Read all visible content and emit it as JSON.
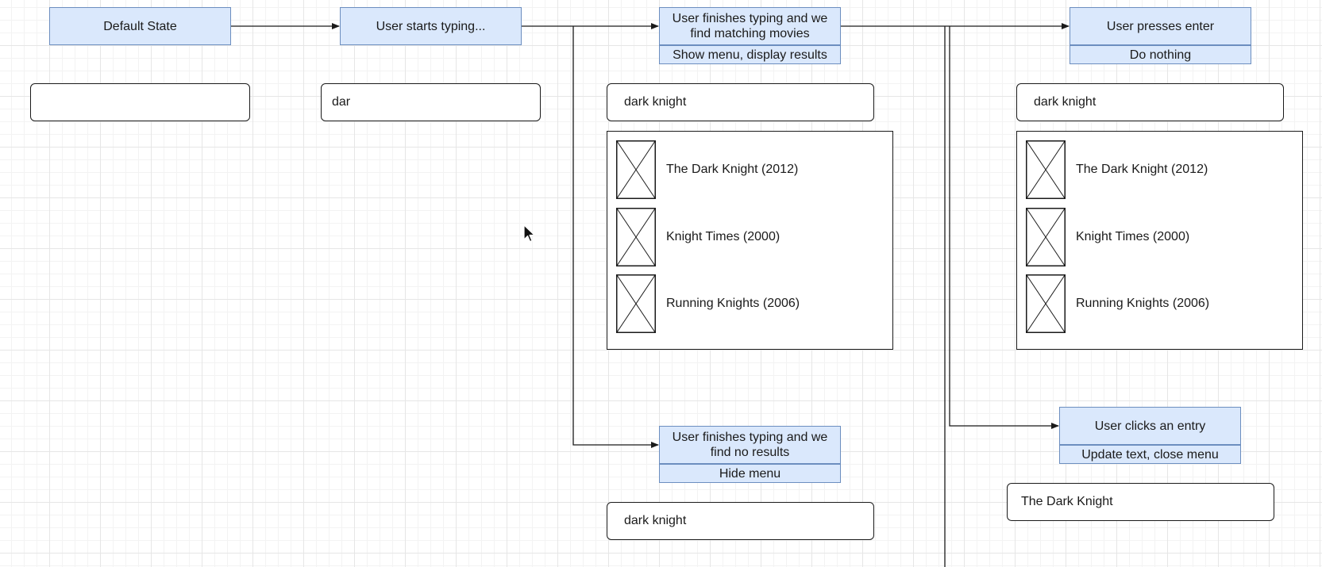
{
  "states": {
    "default": {
      "label": "Default State"
    },
    "typing": {
      "label": "User starts typing..."
    },
    "matches": {
      "label": "User finishes typing and we find matching movies",
      "action": "Show menu, display results"
    },
    "no_results": {
      "label": "User finishes typing and we find no results",
      "action": "Hide menu"
    },
    "enter": {
      "label": "User presses enter",
      "action": "Do nothing"
    },
    "click_entry": {
      "label": "User clicks an entry",
      "action": "Update text, close menu"
    }
  },
  "fields": {
    "default": "",
    "typing": "dar",
    "matches": "dark knight",
    "enter": "dark knight",
    "no_results": "dark knight",
    "click_entry": "The Dark Knight"
  },
  "results": [
    {
      "title": "The Dark Knight (2012)",
      "thumb_icon": "image-placeholder-icon"
    },
    {
      "title": "Knight Times (2000)",
      "thumb_icon": "image-placeholder-icon"
    },
    {
      "title": "Running Knights (2006)",
      "thumb_icon": "image-placeholder-icon"
    }
  ],
  "colors": {
    "state_fill": "#dae8fc",
    "state_stroke": "#6c8ebf",
    "line": "#1a1a1a"
  }
}
